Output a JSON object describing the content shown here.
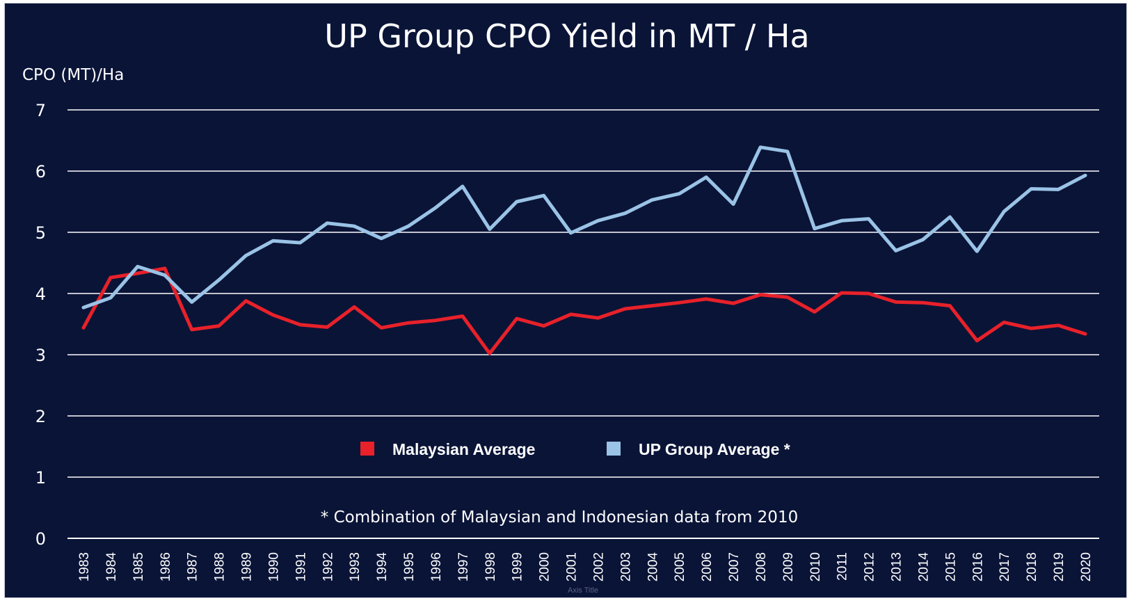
{
  "chart_data": {
    "type": "line",
    "title": "UP Group CPO Yield in MT / Ha",
    "ylabel": "CPO (MT)/Ha",
    "xlabel": "Axis Title",
    "ylim": [
      0,
      7
    ],
    "yticks": [
      "0",
      "1",
      "2",
      "3",
      "4",
      "5",
      "6",
      "7"
    ],
    "grid": true,
    "legend_position": "bottom-center",
    "categories": [
      "1983",
      "1984",
      "1985",
      "1986",
      "1987",
      "1988",
      "1989",
      "1990",
      "1991",
      "1992",
      "1993",
      "1994",
      "1995",
      "1996",
      "1997",
      "1998",
      "1999",
      "2000",
      "2001",
      "2002",
      "2003",
      "2004",
      "2005",
      "2006",
      "2007",
      "2008",
      "2009",
      "2010",
      "2011",
      "2012",
      "2013",
      "2014",
      "2015",
      "2016",
      "2017",
      "2018",
      "2019",
      "2020"
    ],
    "series": [
      {
        "name": "Malaysian Average",
        "color": "#e8212a",
        "values": [
          3.44,
          4.26,
          4.33,
          4.41,
          3.41,
          3.47,
          3.88,
          3.65,
          3.49,
          3.45,
          3.78,
          3.44,
          3.52,
          3.56,
          3.63,
          3.02,
          3.59,
          3.47,
          3.66,
          3.6,
          3.75,
          3.8,
          3.85,
          3.91,
          3.84,
          3.98,
          3.94,
          3.7,
          4.01,
          4.0,
          3.86,
          3.85,
          3.8,
          3.23,
          3.53,
          3.43,
          3.48,
          3.34
        ]
      },
      {
        "name": "UP Group Average *",
        "color": "#9ac3e6",
        "values": [
          3.77,
          3.93,
          4.44,
          4.3,
          3.86,
          4.22,
          4.62,
          4.86,
          4.83,
          5.15,
          5.1,
          4.9,
          5.1,
          5.4,
          5.75,
          5.05,
          5.5,
          5.6,
          4.99,
          5.19,
          5.31,
          5.53,
          5.63,
          5.9,
          5.46,
          6.39,
          6.32,
          5.06,
          5.19,
          5.22,
          4.7,
          4.88,
          5.25,
          4.69,
          5.34,
          5.71,
          5.7,
          5.93
        ]
      }
    ],
    "footnote": "* Combination of Malaysian and Indonesian data from 2010"
  }
}
